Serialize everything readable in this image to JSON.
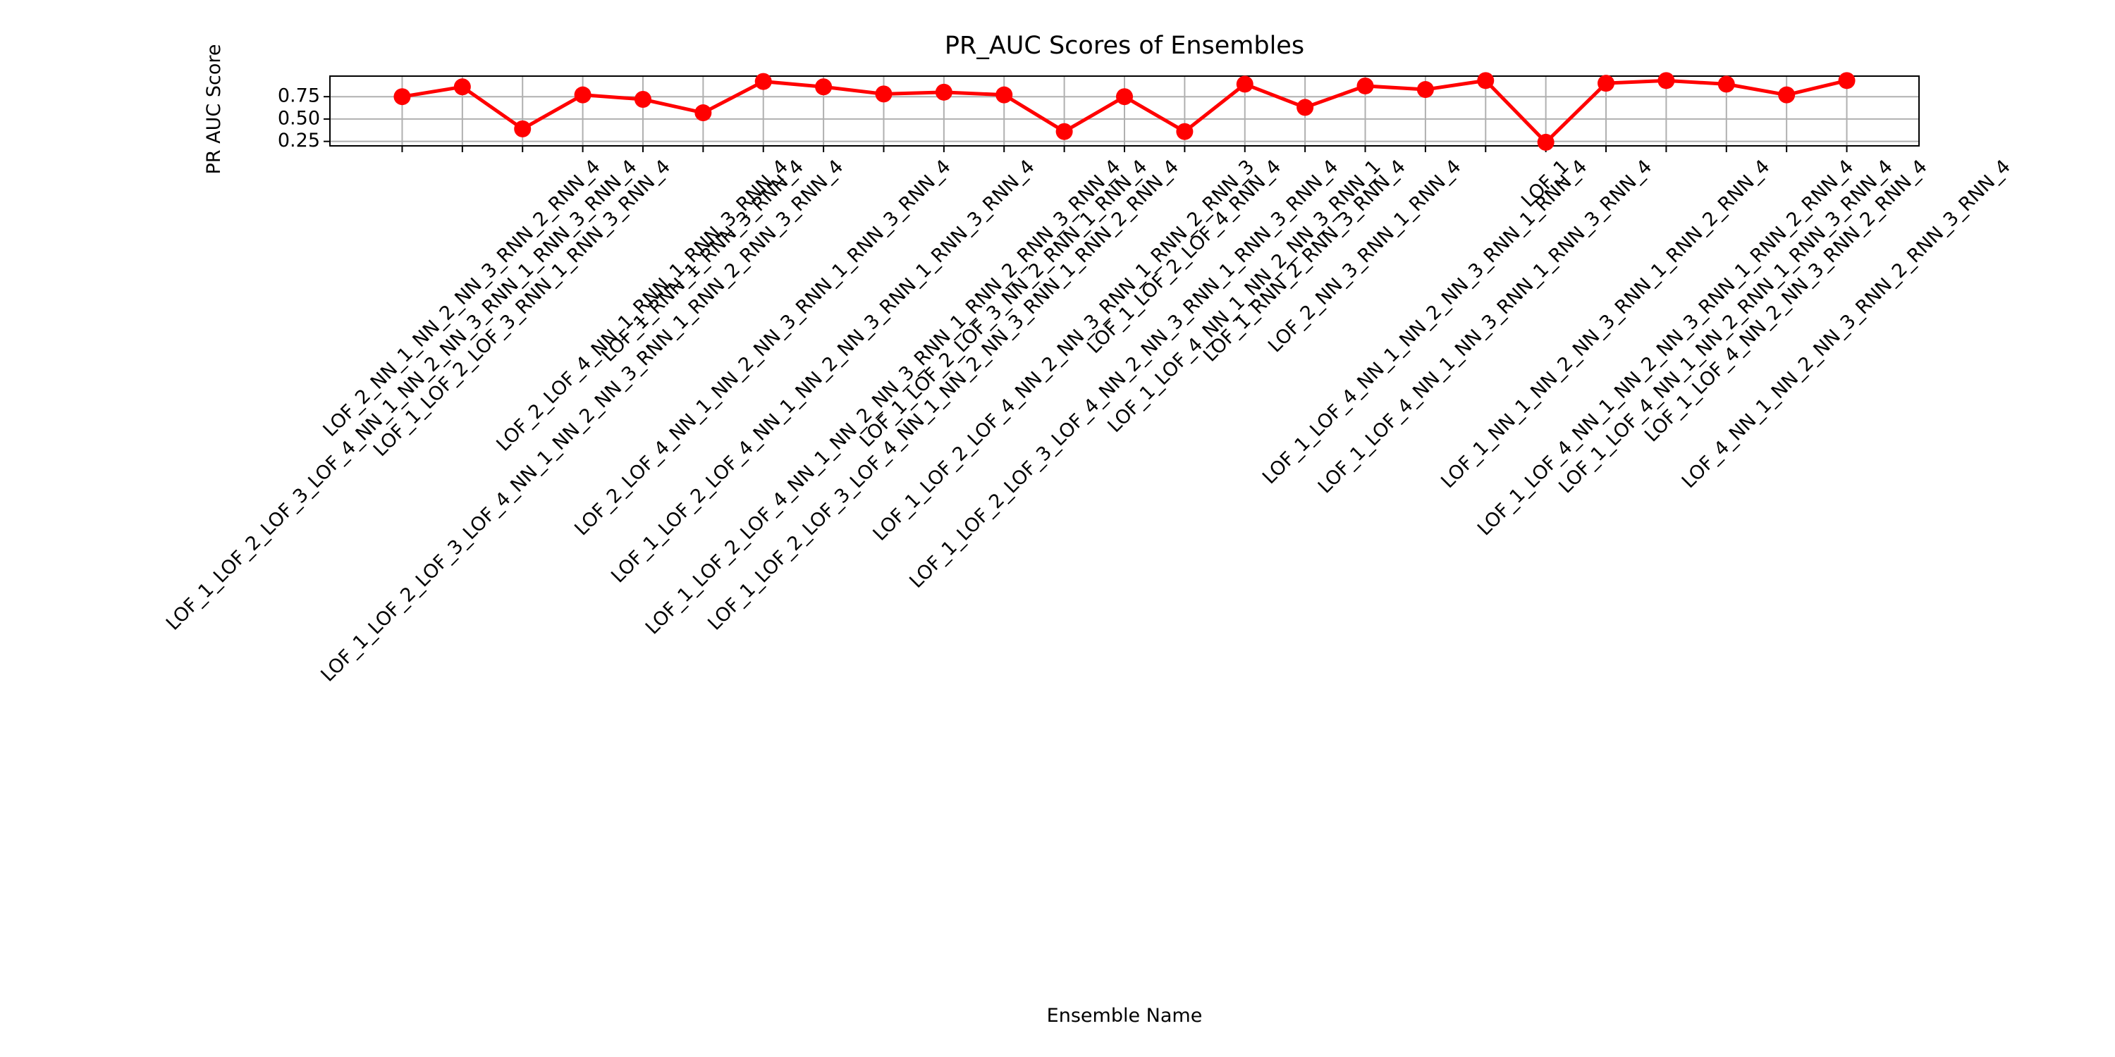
{
  "chart_data": {
    "type": "line",
    "title": "PR_AUC Scores of Ensembles",
    "xlabel": "Ensemble Name",
    "ylabel": "PR AUC Score",
    "categories": [
      "LOF_1_LOF_2_LOF_3_LOF_4_NN_1_NN_2_NN_3_RNN_1_RNN_3_RNN_4",
      "LOF_2_NN_1_NN_2_NN_3_RNN_2_RNN_4",
      "LOF_1_LOF_2_LOF_3_RNN_1_RNN_3_RNN_4",
      "LOF_1_LOF_2_LOF_3_LOF_4_NN_1_NN_2_NN_3_RNN_1_RNN_2_RNN_3_RNN_4",
      "LOF_2_LOF_4_NN_1_RNN_1_RNN_3_RNN_4",
      "LOF_1_RNN_1_RNN_3_RNN_4",
      "LOF_2_LOF_4_NN_1_NN_2_NN_3_RNN_1_RNN_3_RNN_4",
      "LOF_1_LOF_2_LOF_4_NN_1_NN_2_NN_3_RNN_1_RNN_3_RNN_4",
      "LOF_1_LOF_2_LOF_4_NN_1_NN_2_NN_3_RNN_1_RNN_2_RNN_3_RNN_4",
      "LOF_1_LOF_2_LOF_3_LOF_4_NN_1_NN_2_NN_3_RNN_1_RNN_2_RNN_4",
      "LOF_1_LOF_2_LOF_3_NN_2_RNN_1_RNN_4",
      "LOF_1_LOF_2_LOF_4_NN_2_NN_3_RNN_1_RNN_2_RNN_3",
      "LOF_1_LOF_2_LOF_3_LOF_4_NN_2_NN_3_RNN_1_RNN_3_RNN_4",
      "LOF_1_LOF_2_LOF_4_RNN_4",
      "LOF_1_LOF_4_NN_1_NN_2_NN_3_RNN_1",
      "LOF_1_RNN_2_RNN_3_RNN_4",
      "LOF_2_NN_3_RNN_1_RNN_4",
      "LOF_1_LOF_4_NN_1_NN_2_NN_3_RNN_1_RNN_4",
      "LOF_1_LOF_4_NN_1_NN_3_RNN_1_RNN_3_RNN_4",
      "LOF_1",
      "LOF_1_NN_1_NN_2_NN_3_RNN_1_RNN_2_RNN_4",
      "LOF_1_LOF_4_NN_1_NN_2_NN_3_RNN_1_RNN_2_RNN_4",
      "LOF_1_LOF_4_NN_1_NN_2_RNN_1_RNN_3_RNN_4",
      "LOF_1_LOF_4_NN_2_NN_3_RNN_2_RNN_4",
      "LOF_4_NN_1_NN_2_NN_3_RNN_2_RNN_3_RNN_4"
    ],
    "values": [
      0.75,
      0.86,
      0.39,
      0.77,
      0.72,
      0.57,
      0.92,
      0.86,
      0.78,
      0.8,
      0.77,
      0.36,
      0.75,
      0.36,
      0.89,
      0.63,
      0.87,
      0.83,
      0.93,
      0.24,
      0.9,
      0.93,
      0.89,
      0.77,
      0.93
    ],
    "color": "#ff0000",
    "ylim": [
      0.2,
      0.98
    ],
    "yticks": [
      0.25,
      {
        "value": 0.5,
        "label": "0.50"
      },
      0.75
    ],
    "grid": true
  }
}
